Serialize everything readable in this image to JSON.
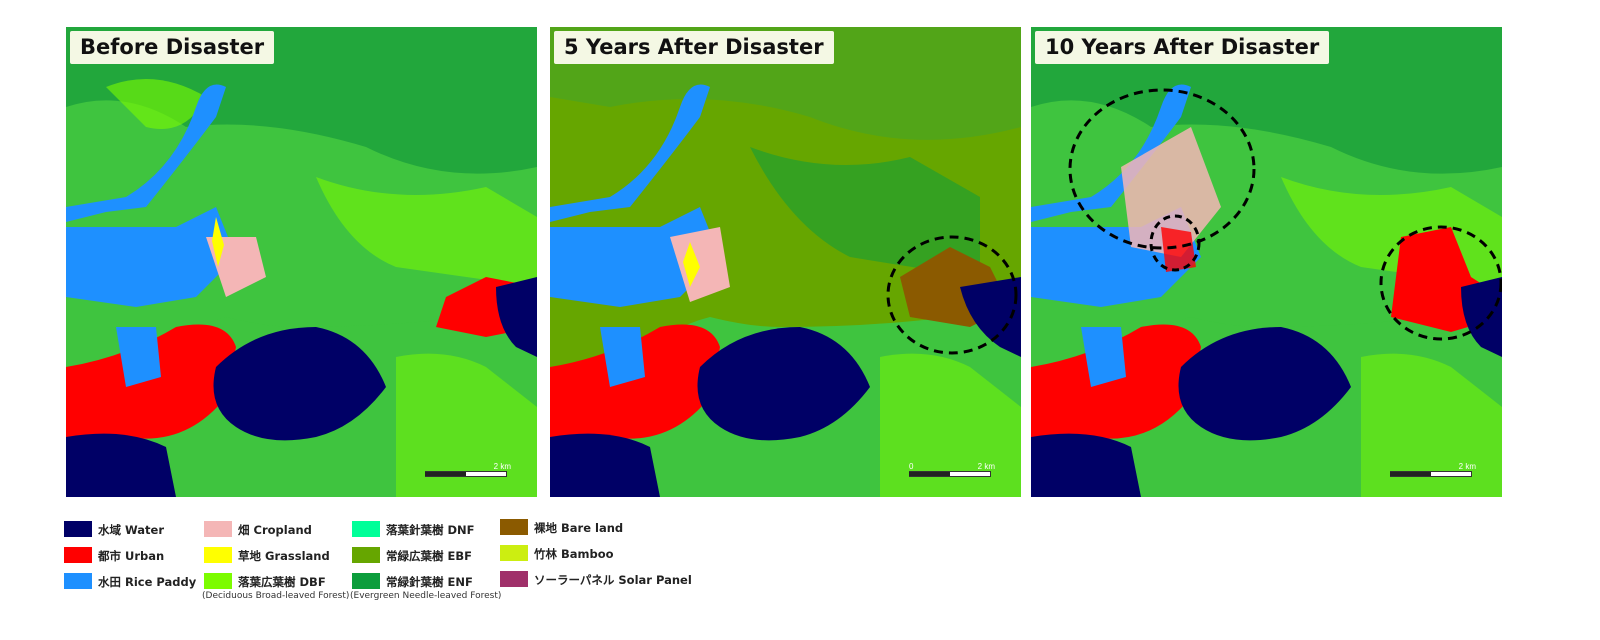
{
  "panels": [
    {
      "title": "Before Disaster",
      "scale": {
        "left": "",
        "right": "2 km"
      }
    },
    {
      "title": "5 Years After Disaster",
      "scale": {
        "left": "0",
        "right": "2 km"
      }
    },
    {
      "title": "10 Years After Disaster",
      "scale": {
        "left": "",
        "right": "2 km"
      }
    }
  ],
  "legend": [
    {
      "ja": "水域",
      "en": "Water",
      "color": "#000066"
    },
    {
      "ja": "都市",
      "en": "Urban",
      "color": "#ff0000"
    },
    {
      "ja": "水田",
      "en": "Rice Paddy",
      "color": "#1e90ff"
    },
    {
      "ja": "畑",
      "en": "Cropland",
      "color": "#f4b6b6"
    },
    {
      "ja": "草地",
      "en": "Grassland",
      "color": "#ffff00"
    },
    {
      "ja": "落葉広葉樹",
      "en": "DBF",
      "color": "#7cfc00",
      "note": "(Deciduous Broad-leaved Forest)"
    },
    {
      "ja": "落葉針葉樹",
      "en": "DNF",
      "color": "#00ff99"
    },
    {
      "ja": "常緑広葉樹",
      "en": "EBF",
      "color": "#66a600"
    },
    {
      "ja": "常緑針葉樹",
      "en": "ENF",
      "color": "#0c9d3c",
      "note": "(Evergreen Needle-leaved Forest)"
    },
    {
      "ja": "裸地",
      "en": "Bare land",
      "color": "#8b5a00"
    },
    {
      "ja": "竹林",
      "en": "Bamboo",
      "color": "#ccee11"
    },
    {
      "ja": "ソーラーパネル",
      "en": "Solar Panel",
      "color": "#a0306a"
    }
  ]
}
